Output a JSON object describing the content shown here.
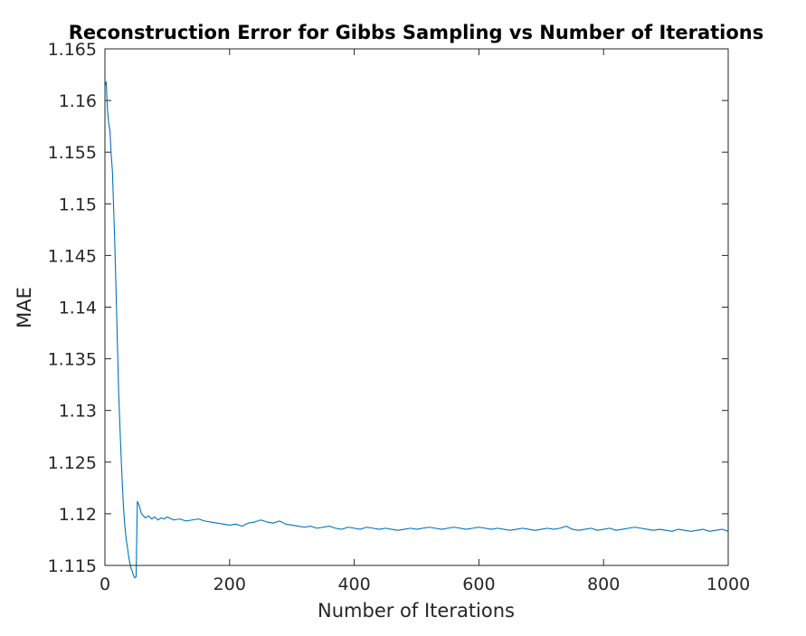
{
  "chart_data": {
    "type": "line",
    "title": "Reconstruction Error for Gibbs Sampling vs Number of Iterations",
    "xlabel": "Number of Iterations",
    "ylabel": "MAE",
    "xlim": [
      0,
      1000
    ],
    "ylim": [
      1.115,
      1.165
    ],
    "xticks": [
      0,
      200,
      400,
      600,
      800,
      1000
    ],
    "xtick_labels": [
      "0",
      "200",
      "400",
      "600",
      "800",
      "1000"
    ],
    "yticks": [
      1.115,
      1.12,
      1.125,
      1.13,
      1.135,
      1.14,
      1.145,
      1.15,
      1.155,
      1.16,
      1.165
    ],
    "ytick_labels": [
      "1.115",
      "1.12",
      "1.125",
      "1.13",
      "1.135",
      "1.14",
      "1.145",
      "1.15",
      "1.155",
      "1.16",
      "1.165"
    ],
    "grid": false,
    "line_color": "#0072BD",
    "series": [
      {
        "x": [
          1,
          2,
          4,
          6,
          8,
          10,
          12,
          14,
          16,
          18,
          20,
          22,
          24,
          26,
          28,
          30,
          32,
          34,
          36,
          38,
          40,
          42,
          44,
          46,
          48,
          50,
          52,
          55,
          58,
          60,
          65,
          70,
          75,
          80,
          85,
          90,
          95,
          100,
          110,
          120,
          130,
          140,
          150,
          160,
          170,
          180,
          190,
          200,
          210,
          220,
          230,
          240,
          250,
          260,
          270,
          280,
          290,
          300,
          310,
          320,
          330,
          340,
          350,
          360,
          370,
          380,
          390,
          400,
          410,
          420,
          430,
          440,
          450,
          460,
          470,
          480,
          490,
          500,
          510,
          520,
          530,
          540,
          550,
          560,
          570,
          580,
          590,
          600,
          610,
          620,
          630,
          640,
          650,
          660,
          670,
          680,
          690,
          700,
          710,
          720,
          730,
          740,
          750,
          760,
          770,
          780,
          790,
          800,
          810,
          820,
          830,
          840,
          850,
          860,
          870,
          880,
          890,
          900,
          910,
          920,
          930,
          940,
          950,
          960,
          970,
          980,
          990,
          1000
        ],
        "y": [
          1.1615,
          1.1618,
          1.1592,
          1.1578,
          1.1571,
          1.1548,
          1.1532,
          1.1495,
          1.1458,
          1.1412,
          1.1365,
          1.1318,
          1.1285,
          1.1255,
          1.1228,
          1.1204,
          1.1188,
          1.1176,
          1.1168,
          1.1159,
          1.1152,
          1.1147,
          1.1144,
          1.114,
          1.1138,
          1.1139,
          1.1212,
          1.1208,
          1.1201,
          1.1199,
          1.1196,
          1.1198,
          1.1195,
          1.1197,
          1.1194,
          1.1196,
          1.1195,
          1.1197,
          1.1194,
          1.1195,
          1.1193,
          1.1194,
          1.1195,
          1.1193,
          1.1192,
          1.1191,
          1.119,
          1.1189,
          1.119,
          1.1188,
          1.1191,
          1.1192,
          1.1194,
          1.1192,
          1.1191,
          1.1193,
          1.119,
          1.1189,
          1.1188,
          1.1187,
          1.1188,
          1.1186,
          1.1187,
          1.1188,
          1.1186,
          1.1185,
          1.1187,
          1.1186,
          1.1185,
          1.1187,
          1.1186,
          1.1185,
          1.1186,
          1.1185,
          1.1184,
          1.1185,
          1.1186,
          1.1185,
          1.1186,
          1.1187,
          1.1186,
          1.1185,
          1.1186,
          1.1187,
          1.1186,
          1.1185,
          1.1186,
          1.1187,
          1.1186,
          1.1185,
          1.1186,
          1.1185,
          1.1184,
          1.1185,
          1.1186,
          1.1185,
          1.1184,
          1.1185,
          1.1186,
          1.1185,
          1.1186,
          1.1188,
          1.1185,
          1.1184,
          1.1185,
          1.1186,
          1.1184,
          1.1185,
          1.1186,
          1.1184,
          1.1185,
          1.1186,
          1.1187,
          1.1186,
          1.1185,
          1.1184,
          1.1185,
          1.1184,
          1.1183,
          1.1185,
          1.1184,
          1.1183,
          1.1184,
          1.1185,
          1.1183,
          1.1184,
          1.1185,
          1.1183
        ]
      }
    ]
  }
}
